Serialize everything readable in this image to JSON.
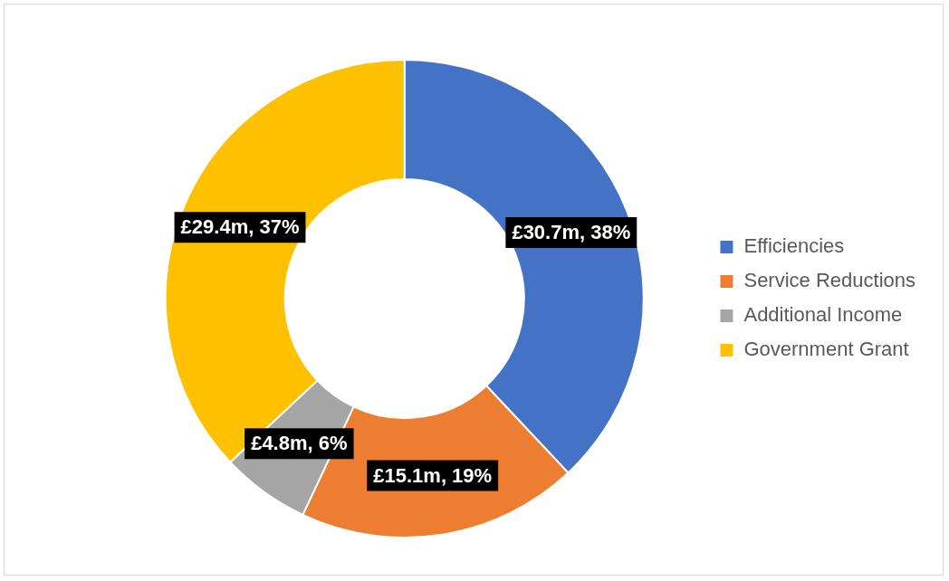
{
  "chart_data": {
    "type": "donut",
    "categories": [
      "Efficiencies",
      "Service Reductions",
      "Additional Income",
      "Government Grant"
    ],
    "values": [
      38,
      19,
      6,
      37
    ],
    "colors": [
      "#4472c4",
      "#ed7d31",
      "#a5a5a5",
      "#ffc000"
    ],
    "value_labels": [
      "£30.7m, 38%",
      "£15.1m, 19%",
      "£4.8m, 6%",
      "£29.4m, 37%"
    ],
    "legend": "right"
  }
}
